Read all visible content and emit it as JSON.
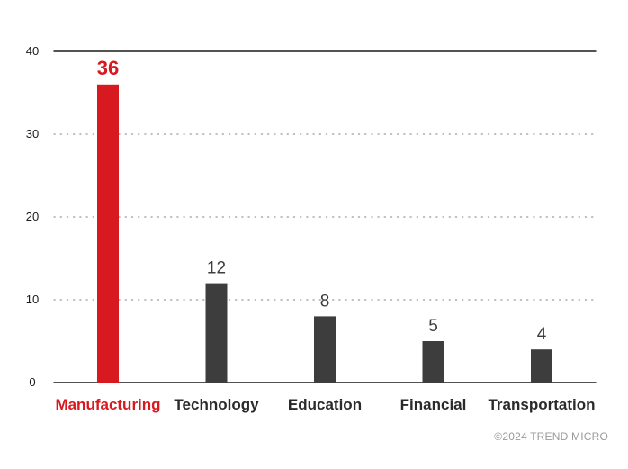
{
  "chart_data": {
    "type": "bar",
    "categories": [
      "Manufacturing",
      "Technology",
      "Education",
      "Financial",
      "Transportation"
    ],
    "values": [
      36,
      12,
      8,
      5,
      4
    ],
    "highlight_index": 0,
    "title": "",
    "xlabel": "",
    "ylabel": "",
    "ylim": [
      0,
      40
    ],
    "yticks": [
      0,
      10,
      20,
      30,
      40
    ],
    "grid": "dotted horizontal",
    "colors": {
      "highlight": "#d71920",
      "default": "#3d3d3d",
      "axis": "#1a1a1a",
      "grid": "#9a9a9a"
    }
  },
  "footer": {
    "copyright": "©2024 TREND MICRO"
  }
}
